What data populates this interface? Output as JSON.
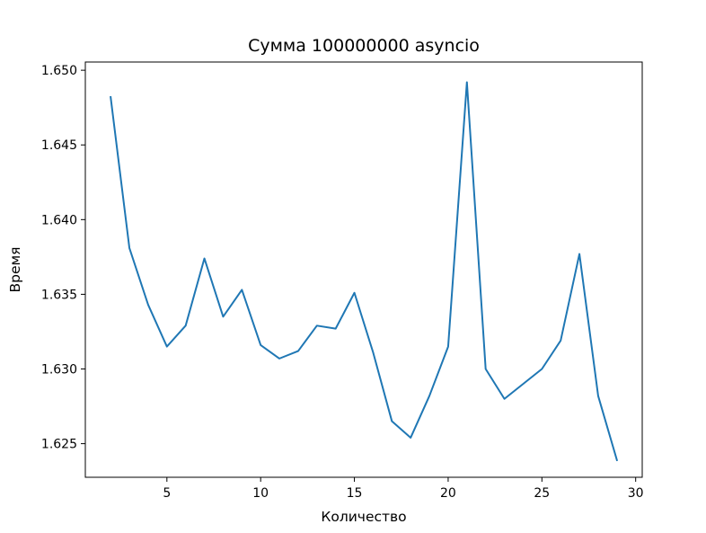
{
  "chart_data": {
    "type": "line",
    "title": "Сумма 100000000 asyncio",
    "xlabel": "Количество",
    "ylabel": "Время",
    "xlim": [
      0.65,
      30.35
    ],
    "ylim": [
      1.62275,
      1.65055
    ],
    "xticks": [
      5,
      10,
      15,
      20,
      25,
      30
    ],
    "xtick_labels": [
      "5",
      "10",
      "15",
      "20",
      "25",
      "30"
    ],
    "yticks": [
      1.625,
      1.63,
      1.635,
      1.64,
      1.645,
      1.65
    ],
    "ytick_labels": [
      "1.625",
      "1.630",
      "1.635",
      "1.640",
      "1.645",
      "1.650"
    ],
    "grid": false,
    "series": [
      {
        "color": "#1f77b4",
        "x": [
          2,
          3,
          4,
          5,
          6,
          7,
          8,
          9,
          10,
          11,
          12,
          13,
          14,
          15,
          16,
          17,
          18,
          19,
          20,
          21,
          22,
          23,
          24,
          25,
          26,
          27,
          28,
          29
        ],
        "y": [
          1.6482,
          1.6381,
          1.6343,
          1.6315,
          1.6329,
          1.6374,
          1.6335,
          1.6353,
          1.6316,
          1.6307,
          1.6312,
          1.6329,
          1.6327,
          1.6351,
          1.6311,
          1.6265,
          1.6254,
          1.6282,
          1.6315,
          1.6492,
          1.63,
          1.628,
          1.629,
          1.63,
          1.6319,
          1.6377,
          1.6282,
          1.6239
        ]
      }
    ]
  }
}
